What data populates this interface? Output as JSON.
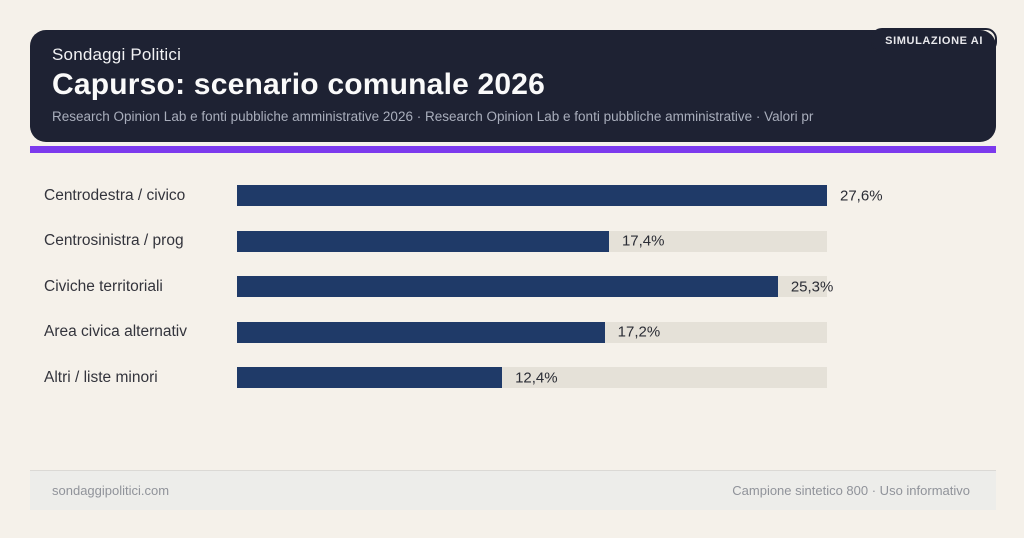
{
  "badge": {
    "label": "SIMULAZIONE AI"
  },
  "header": {
    "kicker": "Sondaggi Politici",
    "title": "Capurso: scenario comunale 2026",
    "subtitle": "Research Opinion Lab e fonti pubbliche amministrative 2026 · Research Opinion Lab e fonti pubbliche amministrative · Valori pr"
  },
  "chart_data": {
    "type": "bar",
    "orientation": "horizontal",
    "title": "Capurso: scenario comunale 2026",
    "categories": [
      "Centrodestra / civico",
      "Centrosinistra / prog",
      "Civiche territoriali",
      "Area civica alternativ",
      "Altri / liste minori"
    ],
    "values": [
      27.6,
      17.4,
      25.3,
      17.2,
      12.4
    ],
    "value_labels": [
      "27,6%",
      "17,4%",
      "25,3%",
      "17,2%",
      "12,4%"
    ],
    "max_value": 27.6,
    "unit": "%",
    "grid": false,
    "legend": false,
    "colors": {
      "bar_fill": "#1f3a68",
      "bar_track": "#e5e1d8",
      "accent": "#7c3aed",
      "header_bg": "#1e2233",
      "page_bg": "#f5f1ea"
    }
  },
  "footer": {
    "left": "sondaggipolitici.com",
    "right": "Campione sintetico 800 · Uso informativo"
  }
}
